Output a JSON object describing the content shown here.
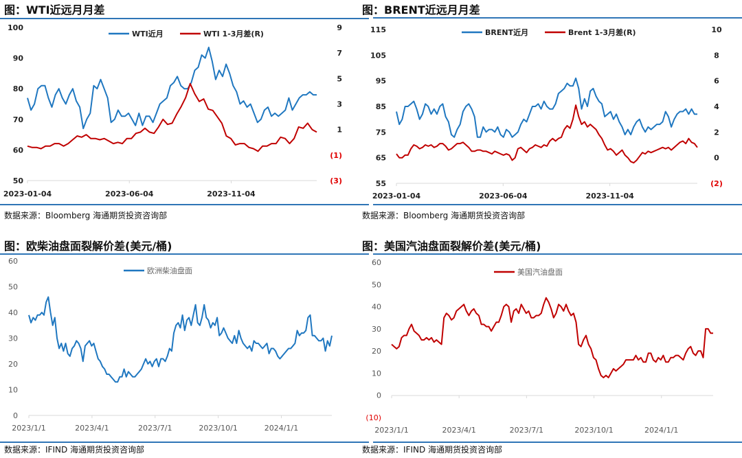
{
  "colors": {
    "rule": "#2e75b6",
    "blue": "#1f77c0",
    "red": "#c00000",
    "neg_label": "#e00000"
  },
  "chart_data": [
    {
      "type": "line",
      "title": "图：WTI近远月月差",
      "source": "数据来源：Bloomberg    海通期货投资咨询部",
      "x_unit": "months since 2023-01-04",
      "xlim": [
        0,
        14.2
      ],
      "x_ticks": [
        {
          "label": "2023-01-04",
          "x": 0
        },
        {
          "label": "2023-06-04",
          "x": 5
        },
        {
          "label": "2023-11-04",
          "x": 10
        }
      ],
      "y_left": {
        "lim": [
          50,
          100
        ],
        "ticks": [
          {
            "v": 100,
            "label": "100"
          },
          {
            "v": 90,
            "label": "90"
          },
          {
            "v": 80,
            "label": "80"
          },
          {
            "v": 70,
            "label": "70"
          },
          {
            "v": 60,
            "label": "60"
          },
          {
            "v": 50,
            "label": "50"
          }
        ]
      },
      "y_right": {
        "lim": [
          -3,
          9
        ],
        "ticks": [
          {
            "v": 9,
            "label": "9"
          },
          {
            "v": 7,
            "label": "7"
          },
          {
            "v": 5,
            "label": "5"
          },
          {
            "v": 3,
            "label": "3"
          },
          {
            "v": 1,
            "label": "1"
          },
          {
            "v": -1,
            "label": "(1)"
          },
          {
            "v": -3,
            "label": "(3)"
          }
        ]
      },
      "legend_position": "top-center",
      "series": [
        {
          "name": "WTI近月",
          "color": "#1f77c0",
          "axis": "left",
          "values": [
            77,
            73,
            75,
            80,
            81,
            81,
            77,
            74,
            78,
            80,
            77,
            75,
            78,
            80,
            76,
            74,
            67,
            70,
            72,
            81,
            80,
            83,
            80,
            77,
            69,
            70,
            73,
            71,
            71,
            72,
            70,
            68,
            72,
            68,
            71,
            71,
            69,
            72,
            75,
            76,
            77,
            81,
            82,
            84,
            81,
            80,
            80,
            82,
            86,
            87,
            91,
            90,
            93.5,
            89,
            83,
            86,
            84,
            88,
            85,
            81,
            79,
            75,
            76,
            74,
            75,
            72,
            69,
            70,
            73,
            74,
            71,
            72,
            71,
            72,
            73,
            77,
            73,
            75,
            77,
            78,
            78,
            79,
            78,
            78
          ]
        },
        {
          "name": "WTI 1-3月差(R)",
          "color": "#c00000",
          "axis": "right",
          "values": [
            -0.3,
            -0.4,
            -0.4,
            -0.5,
            -0.3,
            -0.3,
            -0.1,
            -0.1,
            -0.3,
            -0.1,
            0.2,
            0.5,
            0.4,
            0.6,
            0.3,
            0.3,
            0.2,
            0.3,
            0.1,
            -0.1,
            0,
            -0.1,
            0.3,
            0.3,
            0.7,
            0.8,
            1.1,
            0.8,
            0.7,
            1.2,
            1.8,
            1.4,
            1.5,
            2.2,
            2.8,
            3.5,
            4.6,
            3.8,
            3.2,
            3.4,
            2.6,
            2.5,
            2.0,
            1.5,
            0.5,
            0.3,
            -0.2,
            -0.1,
            -0.1,
            -0.4,
            -0.5,
            -0.7,
            -0.3,
            -0.3,
            -0.1,
            -0.1,
            0.4,
            0.3,
            -0.1,
            0.3,
            1.2,
            1.1,
            1.5,
            1.0,
            0.8
          ]
        }
      ]
    },
    {
      "type": "line",
      "title": "图：BRENT近远月月差",
      "source": "数据来源：Bloomberg    海通期货投资咨询部",
      "x_unit": "months since 2023-01-04",
      "xlim": [
        0,
        14.1
      ],
      "x_ticks": [
        {
          "label": "2023-01-04",
          "x": 0
        },
        {
          "label": "2023-06-04",
          "x": 5
        },
        {
          "label": "2023-11-04",
          "x": 10
        }
      ],
      "y_left": {
        "lim": [
          55,
          115
        ],
        "ticks": [
          {
            "v": 115,
            "label": "115"
          },
          {
            "v": 105,
            "label": "105"
          },
          {
            "v": 95,
            "label": "95"
          },
          {
            "v": 85,
            "label": "85"
          },
          {
            "v": 75,
            "label": "75"
          },
          {
            "v": 65,
            "label": "65"
          },
          {
            "v": 55,
            "label": "55"
          }
        ]
      },
      "y_right": {
        "lim": [
          -2,
          10
        ],
        "ticks": [
          {
            "v": 10,
            "label": "10"
          },
          {
            "v": 8,
            "label": "8"
          },
          {
            "v": 6,
            "label": "6"
          },
          {
            "v": 4,
            "label": "4"
          },
          {
            "v": 2,
            "label": "2"
          },
          {
            "v": 0,
            "label": "0"
          },
          {
            "v": -2,
            "label": "(2)"
          }
        ]
      },
      "legend_position": "top-center",
      "series": [
        {
          "name": "BRENT近月",
          "color": "#1f77c0",
          "axis": "left",
          "values": [
            83,
            78,
            80,
            85,
            85,
            86,
            87,
            84,
            80,
            82,
            86,
            85,
            82,
            84,
            82,
            85,
            86,
            81,
            79,
            74,
            73,
            76,
            78,
            83,
            85,
            86,
            84,
            81,
            73,
            73,
            77,
            75,
            76,
            76,
            75,
            77,
            74,
            73,
            76,
            75,
            73,
            74,
            75,
            78,
            80,
            79,
            82,
            85,
            85,
            86,
            84,
            87,
            85,
            84,
            84,
            86,
            90,
            91,
            92,
            94,
            93,
            93,
            96,
            92,
            84,
            88,
            85,
            91,
            92,
            89,
            87,
            86,
            81,
            82,
            83,
            80,
            82,
            79,
            77,
            74,
            76,
            74,
            77,
            79,
            80,
            77,
            75,
            77,
            76,
            77,
            78,
            78,
            79,
            83,
            81,
            77,
            80,
            82,
            83,
            83,
            84,
            82,
            84,
            82,
            82
          ]
        },
        {
          "name": "Brent 1-3月差(R)",
          "color": "#c00000",
          "axis": "right",
          "values": [
            0.3,
            0,
            0,
            0.2,
            0.2,
            0.7,
            1,
            0.9,
            0.7,
            0.8,
            1,
            0.9,
            1,
            0.8,
            0.9,
            1.1,
            1.1,
            0.9,
            0.6,
            0.7,
            0.9,
            1.1,
            1.1,
            1.2,
            1.0,
            0.8,
            0.5,
            0.5,
            0.6,
            0.6,
            0.5,
            0.5,
            0.4,
            0.3,
            0.5,
            0.4,
            0.3,
            0.2,
            0.3,
            0.2,
            -0.2,
            0,
            0.7,
            0.8,
            0.6,
            0.4,
            0.7,
            0.8,
            1,
            0.9,
            0.8,
            1,
            0.9,
            1.3,
            1.5,
            1.3,
            1.5,
            1.6,
            2.2,
            2.5,
            2.3,
            3.0,
            4.1,
            3.2,
            2.6,
            2.8,
            2.4,
            2.6,
            2.4,
            2.2,
            1.8,
            1.5,
            1.0,
            0.6,
            0.7,
            0.5,
            0.2,
            0.4,
            0.6,
            0.2,
            0,
            -0.3,
            -0.4,
            -0.2,
            0.1,
            0.4,
            0.3,
            0.5,
            0.4,
            0.5,
            0.6,
            0.7,
            0.8,
            0.7,
            0.8,
            0.6,
            0.8,
            1.0,
            1.2,
            1.3,
            1.1,
            1.5,
            1.2,
            1.1,
            0.8
          ]
        }
      ]
    },
    {
      "type": "line",
      "title": "图：欧柴油盘面裂解价差(美元/桶)",
      "source": "数据来源：IFIND    海通期货投资咨询部",
      "x_unit": "months since 2023-01-01",
      "xlim": [
        0,
        14.4
      ],
      "x_ticks": [
        {
          "label": "2023/1/1",
          "x": 0
        },
        {
          "label": "2023/4/1",
          "x": 3
        },
        {
          "label": "2023/7/1",
          "x": 6
        },
        {
          "label": "2023/10/1",
          "x": 9
        },
        {
          "label": "2024/1/1",
          "x": 12
        }
      ],
      "y_left": {
        "lim": [
          0,
          60
        ],
        "ticks": [
          {
            "v": 60,
            "label": "60"
          },
          {
            "v": 50,
            "label": "50"
          },
          {
            "v": 40,
            "label": "40"
          },
          {
            "v": 30,
            "label": "30"
          },
          {
            "v": 20,
            "label": "20"
          },
          {
            "v": 10,
            "label": "10"
          },
          {
            "v": 0,
            "label": "0"
          }
        ]
      },
      "legend_position": "top-center",
      "series": [
        {
          "name": "欧洲柴油盘面",
          "color": "#1f77c0",
          "axis": "left",
          "values": [
            39,
            36,
            38,
            37,
            39,
            39,
            40,
            39,
            44,
            46,
            40,
            35,
            38,
            30,
            26,
            28,
            25,
            28,
            24,
            23,
            26,
            27,
            29,
            28,
            26,
            21,
            27,
            28,
            29,
            27,
            28,
            25,
            22,
            21,
            19,
            18,
            16,
            16,
            15,
            14,
            13,
            13,
            15,
            15,
            18,
            15,
            17,
            16,
            15,
            15,
            16,
            17,
            18,
            20,
            22,
            20,
            21,
            19,
            21,
            22,
            19,
            22,
            22,
            21,
            23,
            26,
            25,
            32,
            35,
            36,
            34,
            39,
            33,
            37,
            38,
            35,
            39,
            43,
            36,
            35,
            38,
            43,
            38,
            37,
            34,
            36,
            35,
            38,
            31,
            32,
            34,
            32,
            30,
            29,
            28,
            31,
            28,
            33,
            30,
            28,
            27,
            26,
            27,
            25,
            29,
            28,
            28,
            27,
            26,
            27,
            28,
            24,
            26,
            26,
            25,
            23,
            22,
            23,
            24,
            25,
            26,
            26,
            27,
            28,
            33,
            31,
            32,
            32,
            33,
            38,
            39,
            31,
            31,
            30,
            29,
            29,
            30,
            25,
            29,
            27,
            31
          ]
        }
      ]
    },
    {
      "type": "line",
      "title": "图：美国汽油盘面裂解价差(美元/桶)",
      "source": "数据来源：IFIND    海通期货投资咨询部",
      "x_unit": "months since 2023-01-01",
      "xlim": [
        0,
        14.3
      ],
      "x_ticks": [
        {
          "label": "2023/1/1",
          "x": 0
        },
        {
          "label": "2023/4/1",
          "x": 3
        },
        {
          "label": "2023/7/1",
          "x": 6
        },
        {
          "label": "2023/10/1",
          "x": 9
        },
        {
          "label": "2024/1/1",
          "x": 12
        }
      ],
      "y_left": {
        "lim": [
          -10,
          60
        ],
        "ticks": [
          {
            "v": 60,
            "label": "60"
          },
          {
            "v": 50,
            "label": "50"
          },
          {
            "v": 40,
            "label": "40"
          },
          {
            "v": 30,
            "label": "30"
          },
          {
            "v": 20,
            "label": "20"
          },
          {
            "v": 10,
            "label": "10"
          },
          {
            "v": 0,
            "label": "0"
          },
          {
            "v": -10,
            "label": "(10)"
          }
        ]
      },
      "legend_position": "top-center",
      "series": [
        {
          "name": "美国汽油盘面",
          "color": "#c00000",
          "axis": "left",
          "values": [
            23,
            22,
            21,
            22,
            26,
            27,
            27,
            30,
            32,
            29,
            28,
            27,
            25,
            25,
            26,
            25,
            26,
            24,
            25,
            24,
            23,
            35,
            37,
            36,
            34,
            35,
            38,
            39,
            40,
            41,
            38,
            36,
            38,
            39,
            37,
            36,
            32,
            32,
            31,
            31,
            29,
            31,
            33,
            33,
            36,
            40,
            41,
            40,
            33,
            38,
            39,
            37,
            41,
            39,
            37,
            38,
            35,
            35,
            36,
            36,
            37,
            41,
            44,
            42,
            39,
            35,
            37,
            41,
            40,
            38,
            41,
            38,
            36,
            37,
            33,
            23,
            22,
            25,
            27,
            23,
            21,
            17,
            16,
            12,
            9,
            8,
            9,
            8,
            10,
            12,
            11,
            12,
            13,
            14,
            16,
            16,
            16,
            16,
            18,
            16,
            17,
            15,
            15,
            19,
            19,
            16,
            15,
            17,
            16,
            18,
            15,
            15,
            17,
            17,
            18,
            18,
            17,
            16,
            19,
            21,
            22,
            19,
            18,
            20,
            20,
            17,
            30,
            30,
            28,
            28
          ]
        }
      ]
    }
  ]
}
